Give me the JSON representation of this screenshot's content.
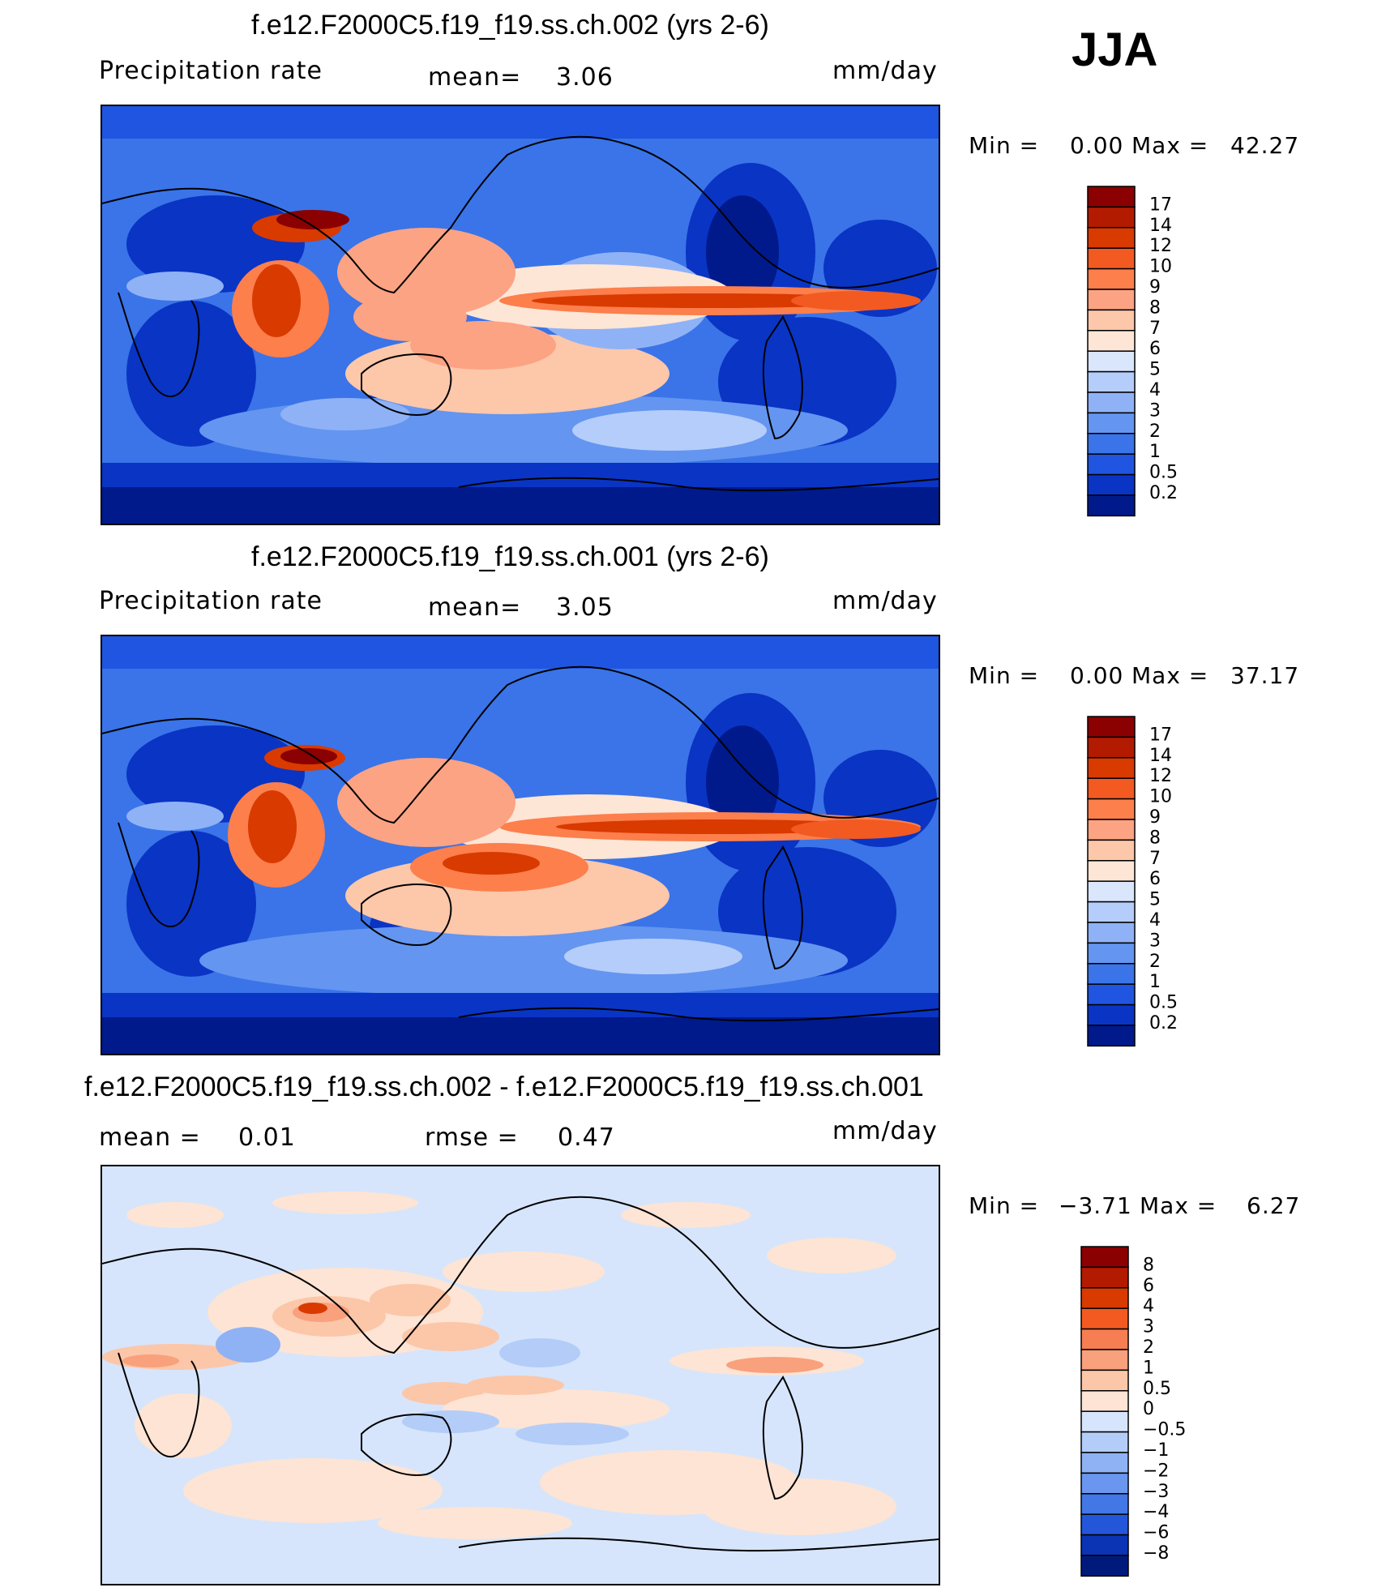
{
  "season": "JJA",
  "panels": [
    {
      "title": "f.e12.F2000C5.f19_f19.ss.ch.002 (yrs 2-6)",
      "left_label": "Precipitation  rate",
      "mid_label": "mean=",
      "mid_value": "3.06",
      "units": "mm/day",
      "min_label": "Min  =",
      "min_value": "0.00",
      "max_label": "Max  =",
      "max_value": "42.27"
    },
    {
      "title": "f.e12.F2000C5.f19_f19.ss.ch.001 (yrs 2-6)",
      "left_label": "Precipitation  rate",
      "mid_label": "mean=",
      "mid_value": "3.05",
      "units": "mm/day",
      "min_label": "Min  =",
      "min_value": "0.00",
      "max_label": "Max  =",
      "max_value": "37.17"
    },
    {
      "title": "f.e12.F2000C5.f19_f19.ss.ch.002 - f.e12.F2000C5.f19_f19.ss.ch.001",
      "left_label": "mean  =",
      "left_value": "0.01",
      "mid_label": "rmse  =",
      "mid_value": "0.47",
      "units": "mm/day",
      "min_label": "Min  =",
      "min_value": "−3.71",
      "max_label": "Max  =",
      "max_value": "6.27"
    }
  ],
  "chart_data": [
    {
      "type": "heatmap",
      "title": "f.e12.F2000C5.f19_f19.ss.ch.002 (yrs 2-6)",
      "variable": "Precipitation rate",
      "units": "mm/day",
      "mean": 3.06,
      "min": 0.0,
      "max": 42.27,
      "contour_levels": [
        "17",
        "14",
        "12",
        "10",
        "9",
        "8",
        "7",
        "6",
        "5",
        "4",
        "3",
        "2",
        "1",
        "0.5",
        "0.2"
      ],
      "colors": [
        "#8b0000",
        "#b31b00",
        "#d93a00",
        "#f25a21",
        "#fc7f4c",
        "#fca383",
        "#fdc7aa",
        "#fde6d6",
        "#d9e6fb",
        "#b5cdfa",
        "#8fb2f7",
        "#6495f0",
        "#3a74e8",
        "#1f55e0",
        "#0a34c4",
        "#001a8c"
      ]
    },
    {
      "type": "heatmap",
      "title": "f.e12.F2000C5.f19_f19.ss.ch.001 (yrs 2-6)",
      "variable": "Precipitation rate",
      "units": "mm/day",
      "mean": 3.05,
      "min": 0.0,
      "max": 37.17,
      "contour_levels": [
        "17",
        "14",
        "12",
        "10",
        "9",
        "8",
        "7",
        "6",
        "5",
        "4",
        "3",
        "2",
        "1",
        "0.5",
        "0.2"
      ],
      "colors": [
        "#8b0000",
        "#b31b00",
        "#d93a00",
        "#f25a21",
        "#fc7f4c",
        "#fca383",
        "#fdc7aa",
        "#fde6d6",
        "#d9e6fb",
        "#b5cdfa",
        "#8fb2f7",
        "#6495f0",
        "#3a74e8",
        "#1f55e0",
        "#0a34c4",
        "#001a8c"
      ]
    },
    {
      "type": "heatmap",
      "title": "f.e12.F2000C5.f19_f19.ss.ch.002 - f.e12.F2000C5.f19_f19.ss.ch.001",
      "units": "mm/day",
      "mean": 0.01,
      "rmse": 0.47,
      "min": -3.71,
      "max": 6.27,
      "contour_levels": [
        "8",
        "6",
        "4",
        "3",
        "2",
        "1",
        "0.5",
        "0",
        "−0.5",
        "−1",
        "−2",
        "−3",
        "−4",
        "−6",
        "−8"
      ],
      "colors": [
        "#8b0000",
        "#b31b00",
        "#d93a00",
        "#f25a21",
        "#f67e52",
        "#f9a07c",
        "#fcc6a8",
        "#fde4d4",
        "#d6e5fb",
        "#b3cdf8",
        "#8fb2f5",
        "#6a96ef",
        "#4377e6",
        "#2456da",
        "#0a34b4",
        "#001a7c"
      ]
    }
  ]
}
